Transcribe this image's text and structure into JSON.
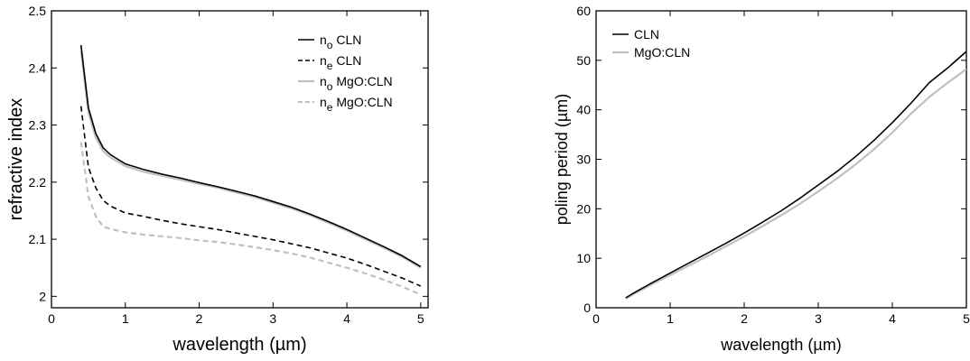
{
  "chart_data": [
    {
      "type": "line",
      "xlabel": "wavelength (µm)",
      "ylabel": "refractive index",
      "xlim": [
        0,
        5.1
      ],
      "ylim": [
        1.98,
        2.5
      ],
      "xticks": [
        0,
        1,
        2,
        3,
        4,
        5
      ],
      "yticks": [
        2,
        2.1,
        2.2,
        2.3,
        2.4,
        2.5
      ],
      "xtick_labels": [
        "0",
        "1",
        "2",
        "3",
        "4",
        "5"
      ],
      "ytick_labels": [
        "2",
        "2.1",
        "2.2",
        "2.3",
        "2.4",
        "2.5"
      ],
      "grid": false,
      "legend_position": "top-right",
      "x": [
        0.4,
        0.5,
        0.6,
        0.7,
        0.8,
        1.0,
        1.25,
        1.5,
        1.75,
        2.0,
        2.25,
        2.5,
        2.75,
        3.0,
        3.25,
        3.5,
        3.75,
        4.0,
        4.25,
        4.5,
        4.75,
        5.0
      ],
      "series": [
        {
          "name_main": "n",
          "name_sub": "o",
          "name_rest": " CLN",
          "color": "#000000",
          "dash": "solid",
          "values": [
            2.44,
            2.33,
            2.285,
            2.26,
            2.248,
            2.232,
            2.222,
            2.214,
            2.207,
            2.199,
            2.192,
            2.184,
            2.176,
            2.166,
            2.156,
            2.144,
            2.131,
            2.117,
            2.102,
            2.087,
            2.071,
            2.052
          ]
        },
        {
          "name_main": "n",
          "name_sub": "e",
          "name_rest": " CLN",
          "color": "#000000",
          "dash": "dashed",
          "values": [
            2.333,
            2.226,
            2.19,
            2.168,
            2.158,
            2.146,
            2.14,
            2.133,
            2.127,
            2.122,
            2.117,
            2.111,
            2.105,
            2.099,
            2.092,
            2.085,
            2.076,
            2.067,
            2.056,
            2.044,
            2.032,
            2.018
          ]
        },
        {
          "name_main": "n",
          "name_sub": "o",
          "name_rest": " MgO:CLN",
          "color": "#c0c0c0",
          "dash": "solid",
          "values": [
            2.43,
            2.322,
            2.278,
            2.254,
            2.243,
            2.228,
            2.218,
            2.211,
            2.204,
            2.197,
            2.19,
            2.182,
            2.174,
            2.164,
            2.154,
            2.142,
            2.129,
            2.115,
            2.1,
            2.085,
            2.069,
            2.05
          ]
        },
        {
          "name_main": "n",
          "name_sub": "e",
          "name_rest": " MgO:CLN",
          "color": "#c0c0c0",
          "dash": "dashed",
          "values": [
            2.27,
            2.175,
            2.14,
            2.122,
            2.118,
            2.112,
            2.108,
            2.105,
            2.102,
            2.098,
            2.095,
            2.091,
            2.086,
            2.081,
            2.075,
            2.068,
            2.059,
            2.05,
            2.04,
            2.029,
            2.017,
            2.003
          ]
        }
      ]
    },
    {
      "type": "line",
      "xlabel": "wavelength (µm)",
      "ylabel": "poling period (µm)",
      "xlim": [
        0,
        5.0
      ],
      "ylim": [
        0,
        60
      ],
      "xticks": [
        0,
        1,
        2,
        3,
        4,
        5
      ],
      "yticks": [
        0,
        10,
        20,
        30,
        40,
        50,
        60
      ],
      "xtick_labels": [
        "0",
        "1",
        "2",
        "3",
        "4",
        "5"
      ],
      "ytick_labels": [
        "0",
        "10",
        "20",
        "30",
        "40",
        "50",
        "60"
      ],
      "grid": false,
      "legend_position": "top-left",
      "x": [
        0.4,
        0.5,
        0.75,
        1.0,
        1.25,
        1.5,
        1.75,
        2.0,
        2.25,
        2.5,
        2.75,
        3.0,
        3.25,
        3.5,
        3.75,
        4.0,
        4.25,
        4.5,
        4.75,
        5.0
      ],
      "series": [
        {
          "name": "CLN",
          "color": "#000000",
          "dash": "solid",
          "values": [
            2.0,
            2.9,
            5.0,
            7.0,
            9.0,
            11.0,
            13.0,
            15.1,
            17.3,
            19.6,
            22.1,
            24.8,
            27.5,
            30.5,
            33.8,
            37.4,
            41.3,
            45.5,
            48.5,
            51.8
          ]
        },
        {
          "name": "MgO:CLN",
          "color": "#c0c0c0",
          "dash": "solid",
          "values": [
            1.8,
            2.7,
            4.7,
            6.6,
            8.5,
            10.4,
            12.4,
            14.4,
            16.5,
            18.7,
            21.0,
            23.5,
            26.1,
            28.9,
            32.0,
            35.4,
            39.2,
            42.6,
            45.5,
            48.2
          ]
        }
      ]
    }
  ]
}
